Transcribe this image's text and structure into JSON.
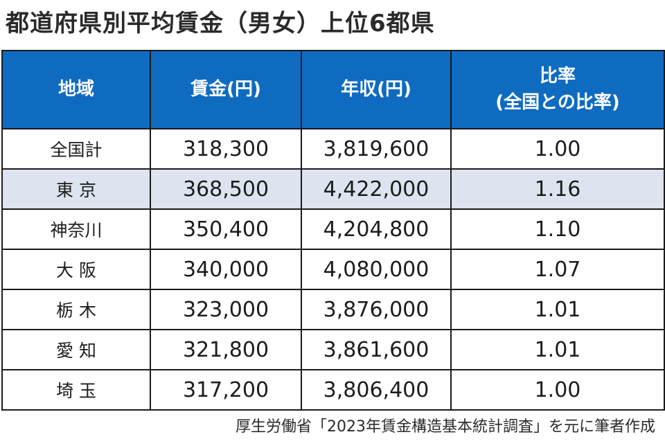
{
  "title": "都道府県別平均賃金（男女）上位6都県",
  "table": {
    "headers": {
      "region": "地域",
      "wage": "賃金(円)",
      "annual": "年収(円)",
      "ratio_line1": "比率",
      "ratio_line2": "(全国との比率)"
    },
    "rows": [
      {
        "region": "全国計",
        "wage": "318,300",
        "annual": "3,819,600",
        "ratio": "1.00",
        "highlight": false
      },
      {
        "region": "東 京",
        "wage": "368,500",
        "annual": "4,422,000",
        "ratio": "1.16",
        "highlight": true
      },
      {
        "region": "神奈川",
        "wage": "350,400",
        "annual": "4,204,800",
        "ratio": "1.10",
        "highlight": false
      },
      {
        "region": "大 阪",
        "wage": "340,000",
        "annual": "4,080,000",
        "ratio": "1.07",
        "highlight": false
      },
      {
        "region": "栃 木",
        "wage": "323,000",
        "annual": "3,876,000",
        "ratio": "1.01",
        "highlight": false
      },
      {
        "region": "愛 知",
        "wage": "321,800",
        "annual": "3,861,600",
        "ratio": "1.01",
        "highlight": false
      },
      {
        "region": "埼 玉",
        "wage": "317,200",
        "annual": "3,806,400",
        "ratio": "1.00",
        "highlight": false
      }
    ]
  },
  "source": "厚生労働省「2023年賃金構造基本統計調査」を元に筆者作成",
  "colors": {
    "header_bg": "#0f6bc0",
    "header_text": "#ffffff",
    "highlight_row": "#dde4ef",
    "border": "#1a1a1a"
  }
}
